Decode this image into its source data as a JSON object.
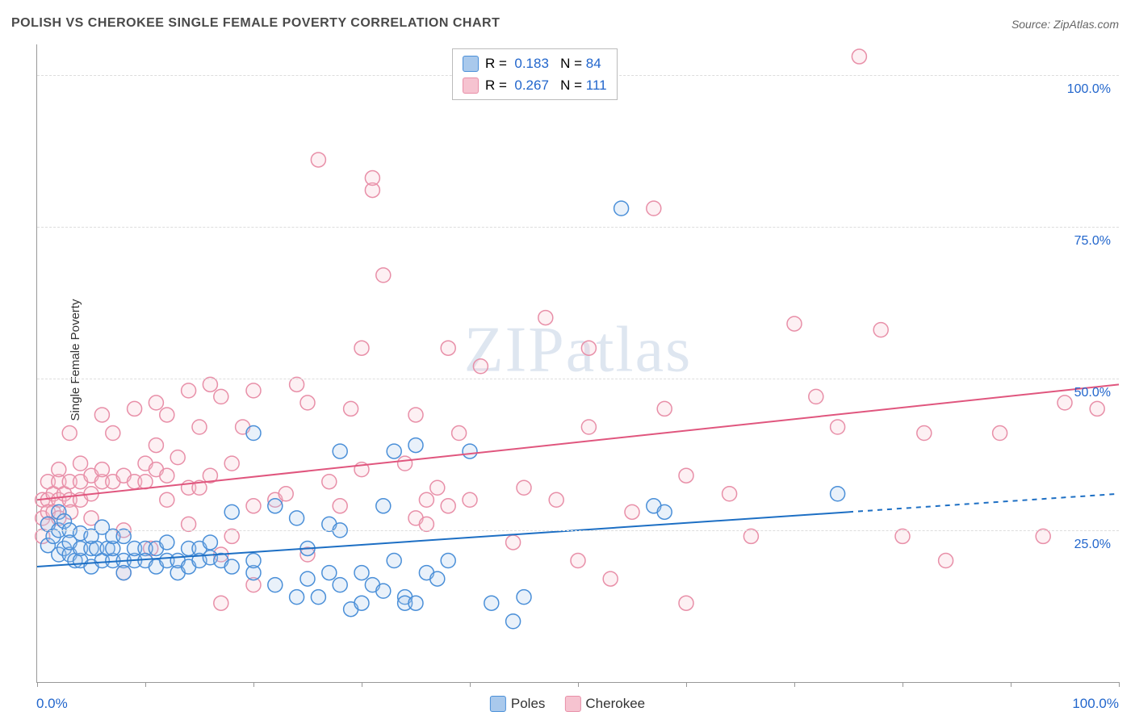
{
  "title": "POLISH VS CHEROKEE SINGLE FEMALE POVERTY CORRELATION CHART",
  "source_prefix": "Source: ",
  "source_name": "ZipAtlas.com",
  "ylabel": "Single Female Poverty",
  "watermark": "ZIPatlas",
  "chart": {
    "type": "scatter",
    "background_color": "#ffffff",
    "grid_color": "#dddddd",
    "axis_color": "#999999",
    "title_fontsize": 16,
    "title_color": "#4a4a4a",
    "label_fontsize": 15,
    "tick_label_color": "#2266cc",
    "tick_label_fontsize": 16,
    "marker_radius": 9,
    "marker_stroke_width": 1.5,
    "fill_opacity": 0.25,
    "line_width": 2,
    "xlim": [
      0,
      100
    ],
    "ylim": [
      0,
      105
    ],
    "x_ticks": [
      0,
      10,
      20,
      30,
      40,
      50,
      60,
      70,
      80,
      90,
      100
    ],
    "y_gridlines": [
      25,
      50,
      75,
      100
    ],
    "y_tick_labels": [
      "25.0%",
      "50.0%",
      "75.0%",
      "100.0%"
    ],
    "x_min_label": "0.0%",
    "x_max_label": "100.0%",
    "series": [
      {
        "name": "Poles",
        "color_stroke": "#4a8fd8",
        "color_fill": "#a9c9ec",
        "line_color": "#1d6fc4",
        "R": "0.183",
        "N": "84",
        "regression": {
          "x1": 0,
          "y1": 19,
          "x2": 75,
          "y2": 28,
          "dash_x2": 100,
          "dash_y2": 31
        },
        "points": [
          [
            1,
            26
          ],
          [
            1,
            22.5
          ],
          [
            1.5,
            24
          ],
          [
            2,
            25
          ],
          [
            2,
            21
          ],
          [
            2,
            28
          ],
          [
            2.5,
            22
          ],
          [
            2.5,
            26.5
          ],
          [
            3,
            25
          ],
          [
            3,
            21
          ],
          [
            3,
            23
          ],
          [
            3.5,
            20
          ],
          [
            4,
            20
          ],
          [
            4,
            22
          ],
          [
            4,
            24.5
          ],
          [
            5,
            22
          ],
          [
            5,
            24
          ],
          [
            5,
            19
          ],
          [
            5.5,
            22
          ],
          [
            6,
            25.5
          ],
          [
            6,
            20
          ],
          [
            6.5,
            22
          ],
          [
            7,
            20
          ],
          [
            7,
            22
          ],
          [
            7,
            24
          ],
          [
            8,
            20
          ],
          [
            8,
            24
          ],
          [
            8,
            18
          ],
          [
            9,
            20
          ],
          [
            9,
            22
          ],
          [
            10,
            22
          ],
          [
            10,
            20
          ],
          [
            11,
            19
          ],
          [
            11,
            22
          ],
          [
            12,
            20
          ],
          [
            12,
            23
          ],
          [
            13,
            18
          ],
          [
            13,
            20
          ],
          [
            14,
            22
          ],
          [
            14,
            19
          ],
          [
            15,
            22
          ],
          [
            15,
            20
          ],
          [
            16,
            20.5
          ],
          [
            16,
            23
          ],
          [
            18,
            28
          ],
          [
            17,
            20
          ],
          [
            18,
            19
          ],
          [
            20,
            18
          ],
          [
            20,
            20
          ],
          [
            20,
            41
          ],
          [
            22,
            29
          ],
          [
            22,
            16
          ],
          [
            24,
            14
          ],
          [
            24,
            27
          ],
          [
            25,
            17
          ],
          [
            25,
            22
          ],
          [
            26,
            14
          ],
          [
            27,
            26
          ],
          [
            27,
            18
          ],
          [
            28,
            16
          ],
          [
            28,
            38
          ],
          [
            28,
            25
          ],
          [
            29,
            12
          ],
          [
            30,
            18
          ],
          [
            30,
            13
          ],
          [
            31,
            16
          ],
          [
            32,
            15
          ],
          [
            32,
            29
          ],
          [
            33,
            20
          ],
          [
            33,
            38
          ],
          [
            34,
            14
          ],
          [
            34,
            13
          ],
          [
            35,
            13
          ],
          [
            35,
            39
          ],
          [
            36,
            18
          ],
          [
            37,
            17
          ],
          [
            38,
            20
          ],
          [
            40,
            38
          ],
          [
            42,
            13
          ],
          [
            44,
            10
          ],
          [
            45,
            14
          ],
          [
            54,
            78
          ],
          [
            57,
            29
          ],
          [
            58,
            28
          ],
          [
            74,
            31
          ]
        ]
      },
      {
        "name": "Cherokee",
        "color_stroke": "#e88fa8",
        "color_fill": "#f6c3d0",
        "line_color": "#e0567e",
        "R": "0.267",
        "N": "111",
        "regression": {
          "x1": 0,
          "y1": 30,
          "x2": 100,
          "y2": 49
        },
        "points": [
          [
            0.5,
            30
          ],
          [
            0.5,
            27
          ],
          [
            0.5,
            24
          ],
          [
            1,
            30
          ],
          [
            1,
            26
          ],
          [
            1,
            33
          ],
          [
            1,
            28
          ],
          [
            1.5,
            28
          ],
          [
            1.5,
            31
          ],
          [
            2,
            33
          ],
          [
            2,
            30
          ],
          [
            2,
            35
          ],
          [
            2,
            27
          ],
          [
            2.5,
            31
          ],
          [
            3,
            30
          ],
          [
            3,
            41
          ],
          [
            3,
            33
          ],
          [
            3.1,
            28
          ],
          [
            4,
            33
          ],
          [
            4,
            30
          ],
          [
            4,
            36
          ],
          [
            5,
            31
          ],
          [
            5,
            27
          ],
          [
            5,
            34
          ],
          [
            6,
            33
          ],
          [
            6,
            44
          ],
          [
            6,
            35
          ],
          [
            7,
            33
          ],
          [
            7,
            41
          ],
          [
            8,
            34
          ],
          [
            8,
            25
          ],
          [
            8,
            18
          ],
          [
            9,
            33
          ],
          [
            9,
            45
          ],
          [
            10,
            36
          ],
          [
            10,
            33
          ],
          [
            10.5,
            22
          ],
          [
            11,
            35
          ],
          [
            11,
            39
          ],
          [
            11,
            46
          ],
          [
            12,
            30
          ],
          [
            12,
            44
          ],
          [
            12,
            34
          ],
          [
            13,
            37
          ],
          [
            14,
            48
          ],
          [
            14,
            26
          ],
          [
            14,
            32
          ],
          [
            15,
            42
          ],
          [
            15,
            32
          ],
          [
            16,
            49
          ],
          [
            16,
            34
          ],
          [
            17,
            21
          ],
          [
            17,
            47
          ],
          [
            18,
            36
          ],
          [
            18,
            24
          ],
          [
            19,
            42
          ],
          [
            20,
            48
          ],
          [
            20,
            29
          ],
          [
            22,
            30
          ],
          [
            23,
            31
          ],
          [
            24,
            49
          ],
          [
            25,
            46
          ],
          [
            25,
            21
          ],
          [
            26,
            86
          ],
          [
            27,
            33
          ],
          [
            28,
            29
          ],
          [
            29,
            45
          ],
          [
            30,
            35
          ],
          [
            30,
            55
          ],
          [
            31,
            81
          ],
          [
            31,
            83
          ],
          [
            32,
            67
          ],
          [
            34,
            36
          ],
          [
            35,
            44
          ],
          [
            35,
            27
          ],
          [
            36,
            30
          ],
          [
            36,
            26
          ],
          [
            37,
            32
          ],
          [
            38,
            55
          ],
          [
            39,
            41
          ],
          [
            40,
            30
          ],
          [
            41,
            52
          ],
          [
            44,
            23
          ],
          [
            45,
            32
          ],
          [
            47,
            60
          ],
          [
            48,
            30
          ],
          [
            50,
            20
          ],
          [
            51,
            42
          ],
          [
            51,
            55
          ],
          [
            53,
            17
          ],
          [
            55,
            28
          ],
          [
            57,
            78
          ],
          [
            58,
            45
          ],
          [
            60,
            34
          ],
          [
            60,
            13
          ],
          [
            64,
            31
          ],
          [
            66,
            24
          ],
          [
            70,
            59
          ],
          [
            72,
            47
          ],
          [
            74,
            42
          ],
          [
            76,
            103
          ],
          [
            78,
            58
          ],
          [
            80,
            24
          ],
          [
            82,
            41
          ],
          [
            84,
            20
          ],
          [
            89,
            41
          ],
          [
            93,
            24
          ],
          [
            95,
            46
          ],
          [
            98,
            45
          ],
          [
            17,
            13
          ],
          [
            20,
            16
          ],
          [
            38,
            29
          ]
        ]
      }
    ],
    "bottom_legend": [
      "Poles",
      "Cherokee"
    ]
  }
}
